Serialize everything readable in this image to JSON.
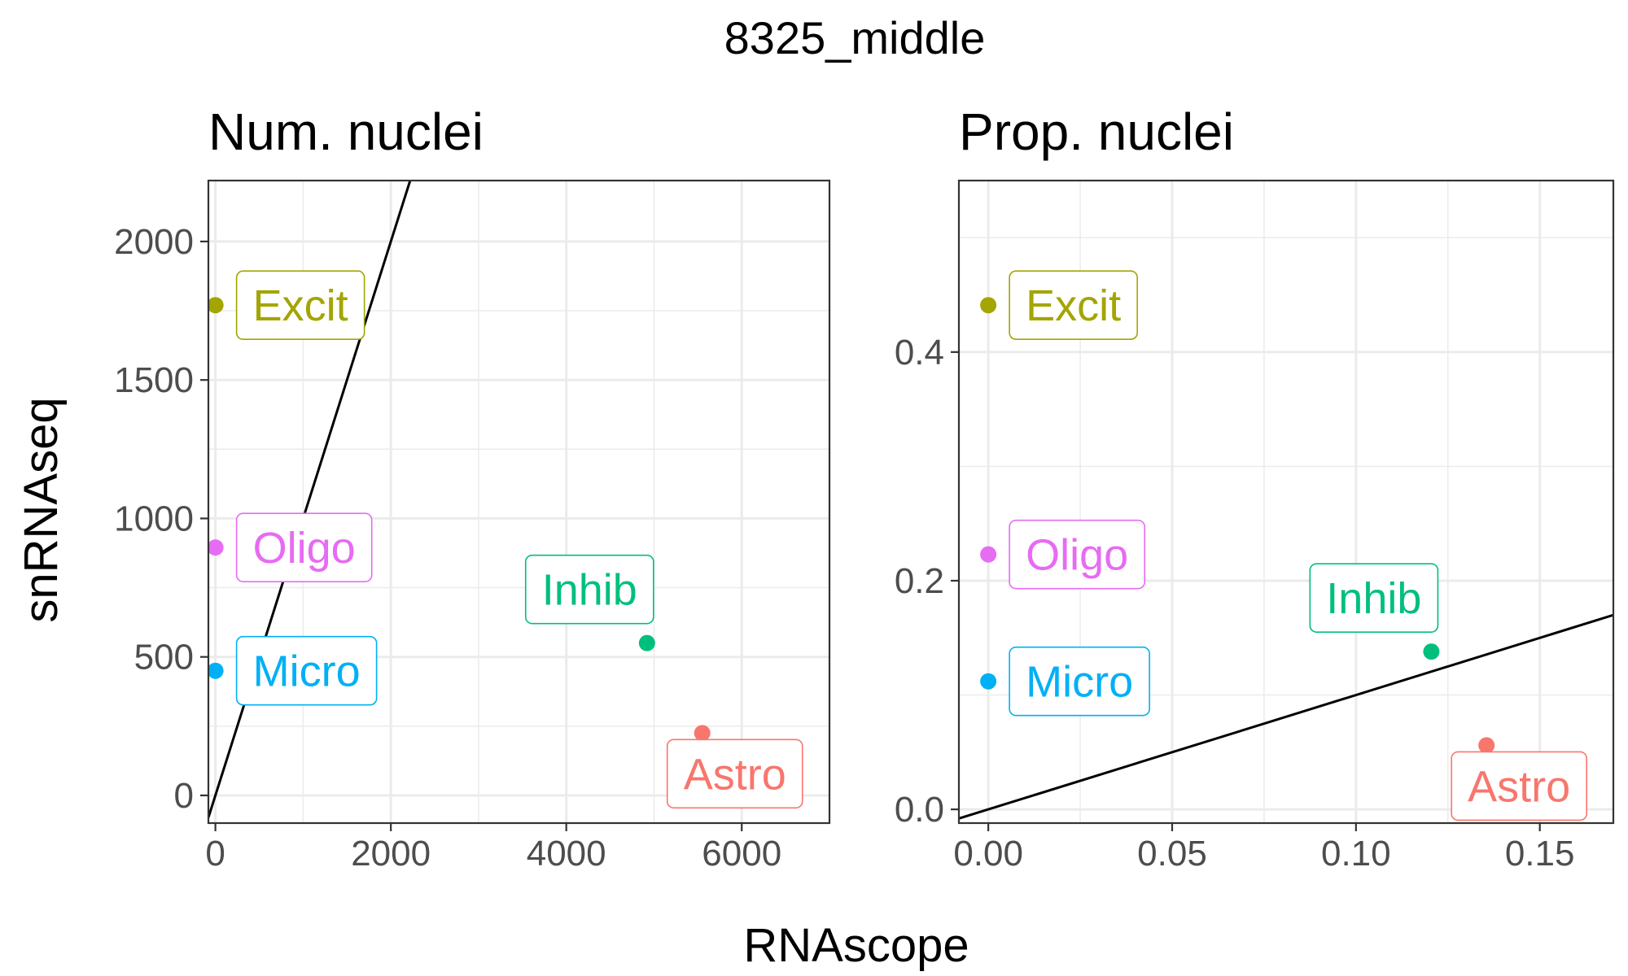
{
  "figure": {
    "title": "8325_middle",
    "xlabel": "RNAscope",
    "ylabel": "snRNAseq"
  },
  "colors": {
    "Astro": "#F8766D",
    "Excit": "#A3A500",
    "Inhib": "#00BF7D",
    "Micro": "#00B0F6",
    "Oligo": "#E76BF3",
    "grid": "#EBEBEB",
    "panel_border": "#333333",
    "tick_text": "#4D4D4D"
  },
  "chart_data": [
    {
      "type": "scatter",
      "title": "Num. nuclei",
      "xlim": [
        -80,
        7000
      ],
      "ylim": [
        -100,
        2220
      ],
      "xticks": [
        0,
        2000,
        4000,
        6000
      ],
      "xtick_labels": [
        "0",
        "2000",
        "4000",
        "6000"
      ],
      "yticks": [
        0,
        500,
        1000,
        1500,
        2000
      ],
      "ytick_labels": [
        "0",
        "500",
        "1000",
        "1500",
        "2000"
      ],
      "grid": true,
      "reference_line": {
        "slope": 1,
        "intercept": 0
      },
      "points": [
        {
          "label": "Excit",
          "x": 0,
          "y": 1770
        },
        {
          "label": "Oligo",
          "x": 0,
          "y": 895
        },
        {
          "label": "Micro",
          "x": 0,
          "y": 450
        },
        {
          "label": "Inhib",
          "x": 4920,
          "y": 550
        },
        {
          "label": "Astro",
          "x": 5550,
          "y": 225
        }
      ]
    },
    {
      "type": "scatter",
      "title": "Prop. nuclei",
      "xlim": [
        -0.008,
        0.17
      ],
      "ylim": [
        -0.012,
        0.55
      ],
      "xticks": [
        0,
        0.05,
        0.1,
        0.15
      ],
      "xtick_labels": [
        "0.00",
        "0.05",
        "0.10",
        "0.15"
      ],
      "yticks": [
        0,
        0.2,
        0.4
      ],
      "ytick_labels": [
        "0.0",
        "0.2",
        "0.4"
      ],
      "grid": true,
      "reference_line": {
        "slope": 1,
        "intercept": 0
      },
      "points": [
        {
          "label": "Excit",
          "x": 0,
          "y": 0.441
        },
        {
          "label": "Oligo",
          "x": 0,
          "y": 0.223
        },
        {
          "label": "Micro",
          "x": 0,
          "y": 0.112
        },
        {
          "label": "Inhib",
          "x": 0.1205,
          "y": 0.138
        },
        {
          "label": "Astro",
          "x": 0.1355,
          "y": 0.056
        }
      ]
    }
  ]
}
